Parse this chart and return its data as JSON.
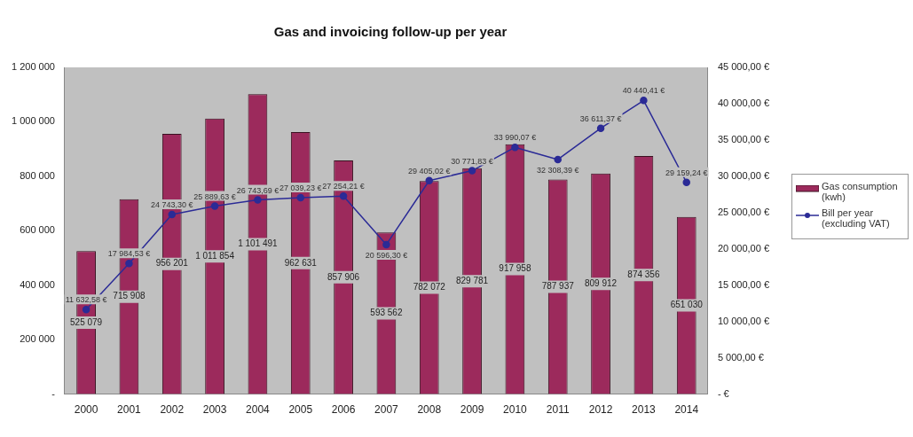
{
  "chart_data": {
    "type": "bar",
    "title": "Gas and invoicing follow-up per year",
    "categories": [
      "2000",
      "2001",
      "2002",
      "2003",
      "2004",
      "2005",
      "2006",
      "2007",
      "2008",
      "2009",
      "2010",
      "2011",
      "2012",
      "2013",
      "2014"
    ],
    "series": [
      {
        "name": "Gas consumption (kwh)",
        "color": "#9c2a5c",
        "values": [
          525079,
          715908,
          956201,
          1011854,
          1101491,
          962631,
          857906,
          593562,
          782072,
          829781,
          917958,
          787937,
          809912,
          874356,
          651030
        ],
        "value_labels": [
          "525 079",
          "715 908",
          "956 201",
          "1 011 854",
          "1 101 491",
          "962 631",
          "857 906",
          "593 562",
          "782 072",
          "829 781",
          "917 958",
          "787 937",
          "809 912",
          "874 356",
          "651 030"
        ]
      },
      {
        "name": "Bill per year (excluding VAT)",
        "type": "line",
        "axis": "y2",
        "color": "#2b2b96",
        "marker": "circle",
        "values": [
          11632.58,
          17984.53,
          24743.3,
          25889.63,
          26743.69,
          27039.23,
          27254.21,
          20596.3,
          29405.02,
          30771.83,
          33990.07,
          32308.39,
          36611.37,
          40440.41,
          29159.24
        ],
        "value_labels": [
          "11 632,58 €",
          "17 984,53 €",
          "24 743,30 €",
          "25 889,63 €",
          "26 743,69 €",
          "27 039,23 €",
          "27 254,21 €",
          "20 596,30 €",
          "29 405,02 €",
          "30 771,83 €",
          "33 990,07 €",
          "32 308,39 €",
          "36 611,37 €",
          "40 440,41 €",
          "29 159,24 €"
        ]
      }
    ],
    "ylim": [
      0,
      1200000
    ],
    "yticks": [
      {
        "value": 0,
        "label": "-"
      },
      {
        "value": 200000,
        "label": "200 000"
      },
      {
        "value": 400000,
        "label": "400 000"
      },
      {
        "value": 600000,
        "label": "600 000"
      },
      {
        "value": 800000,
        "label": "800 000"
      },
      {
        "value": 1000000,
        "label": "1 000 000"
      },
      {
        "value": 1200000,
        "label": "1 200 000"
      }
    ],
    "y2lim": [
      0,
      45000
    ],
    "y2ticks": [
      {
        "value": 0,
        "label": "- €"
      },
      {
        "value": 5000,
        "label": "5 000,00 €"
      },
      {
        "value": 10000,
        "label": "10 000,00 €"
      },
      {
        "value": 15000,
        "label": "15 000,00 €"
      },
      {
        "value": 20000,
        "label": "20 000,00 €"
      },
      {
        "value": 25000,
        "label": "25 000,00 €"
      },
      {
        "value": 30000,
        "label": "30 000,00 €"
      },
      {
        "value": 35000,
        "label": "35 000,00 €"
      },
      {
        "value": 40000,
        "label": "40 000,00 €"
      },
      {
        "value": 45000,
        "label": "45 000,00 €"
      }
    ],
    "grid": false,
    "legend": "right"
  }
}
